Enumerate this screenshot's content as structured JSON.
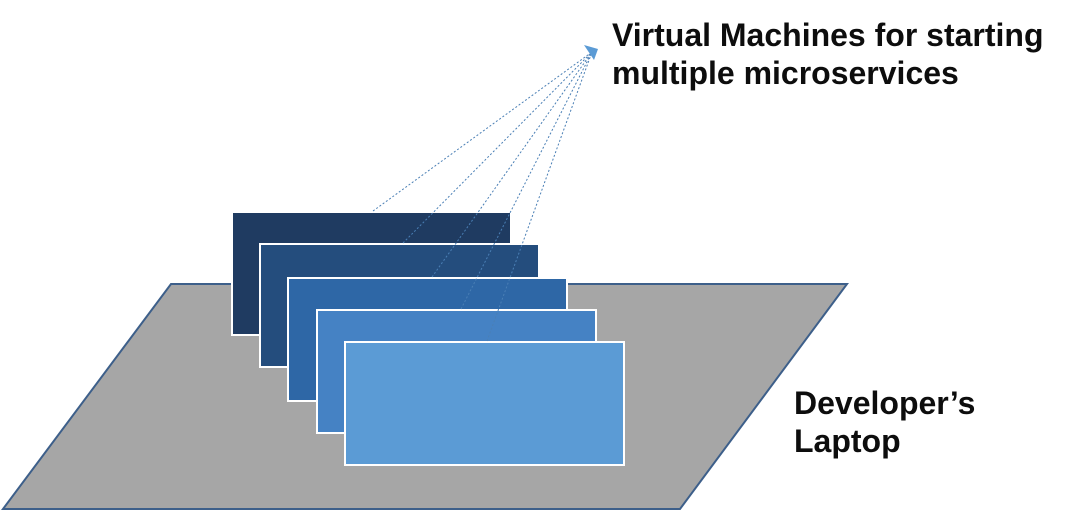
{
  "labels": {
    "vm_line1": "Virtual Machines for starting",
    "vm_line2": "multiple microservices",
    "laptop_line1": "Developer’s",
    "laptop_line2": "Laptop"
  },
  "colors": {
    "laptop_fill": "#a6a6a6",
    "laptop_stroke": "#3d5f8a",
    "vm_1": "#1f3b61",
    "vm_2": "#244d7d",
    "vm_3": "#2e67a6",
    "vm_4": "#4582c4",
    "vm_5": "#5b9bd5",
    "connector": "#4a7fb5",
    "label_text": "#0d0d0d"
  },
  "icons": {
    "connector_endpoint": "arrowhead-icon"
  },
  "virtual_machines": {
    "count": 5
  }
}
